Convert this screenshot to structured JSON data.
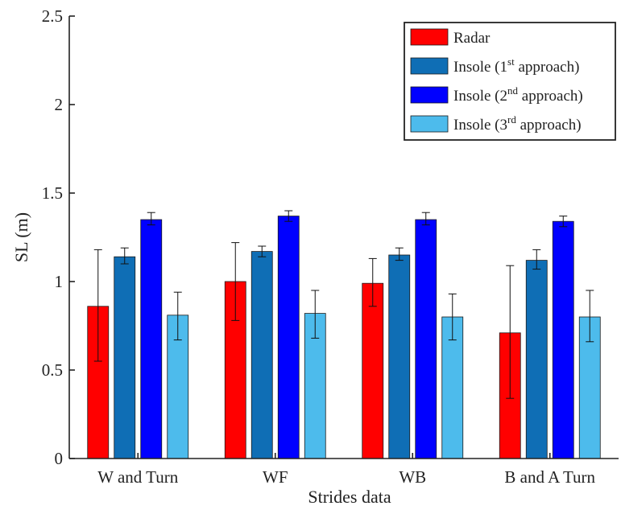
{
  "chart_data": {
    "type": "bar",
    "categories": [
      "W and Turn",
      "WF",
      "WB",
      "B and A Turn"
    ],
    "xlabel": "Strides data",
    "ylabel": "SL (m)",
    "ylim": [
      0,
      2.5
    ],
    "yticks": [
      0,
      0.5,
      1,
      1.5,
      2,
      2.5
    ],
    "ytick_labels": [
      "0",
      "0.5",
      "1",
      "1.5",
      "2",
      "2.5"
    ],
    "grid": false,
    "legend_position": "top-right",
    "series": [
      {
        "name": "Radar",
        "legend_base": "Insole",
        "legend_text": "Radar",
        "color": "#ff0000",
        "values": [
          0.86,
          1.0,
          0.99,
          0.71
        ],
        "err_low": [
          0.55,
          0.78,
          0.86,
          0.34
        ],
        "err_high": [
          1.18,
          1.22,
          1.13,
          1.09
        ]
      },
      {
        "name": "Insole (1st approach)",
        "legend_pre": "Insole (1",
        "legend_sup": "st",
        "legend_post": " approach)",
        "color": "#0f6eb5",
        "values": [
          1.14,
          1.17,
          1.15,
          1.12
        ],
        "err_low": [
          1.1,
          1.14,
          1.12,
          1.07
        ],
        "err_high": [
          1.19,
          1.2,
          1.19,
          1.18
        ]
      },
      {
        "name": "Insole (2nd approach)",
        "legend_pre": "Insole (2",
        "legend_sup": "nd",
        "legend_post": " approach)",
        "color": "#0000ff",
        "values": [
          1.35,
          1.37,
          1.35,
          1.34
        ],
        "err_low": [
          1.32,
          1.34,
          1.32,
          1.31
        ],
        "err_high": [
          1.39,
          1.4,
          1.39,
          1.37
        ]
      },
      {
        "name": "Insole (3rd approach)",
        "legend_pre": "Insole (3",
        "legend_sup": "rd",
        "legend_post": " approach)",
        "color": "#4dbbec",
        "values": [
          0.81,
          0.82,
          0.8,
          0.8
        ],
        "err_low": [
          0.67,
          0.68,
          0.67,
          0.66
        ],
        "err_high": [
          0.94,
          0.95,
          0.93,
          0.95
        ]
      }
    ]
  }
}
